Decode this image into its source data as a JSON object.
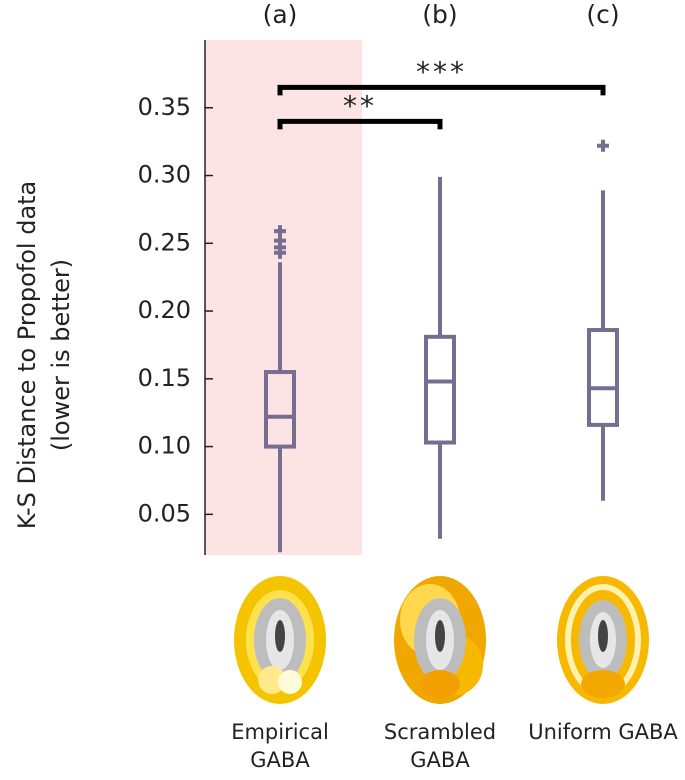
{
  "chart_data": {
    "type": "box",
    "ylabel": "K-S Distance to Propofol data",
    "ylabel_note": "(lower is better)",
    "panel_labels": [
      "(a)",
      "(b)",
      "(c)"
    ],
    "categories": [
      "Empirical GABA",
      "Scrambled GABA",
      "Uniform GABA"
    ],
    "color": "#766d91",
    "highlight_category": 0,
    "highlight_color": "#fde4e4",
    "ylim": [
      0.02,
      0.4
    ],
    "yticks": [
      0.05,
      {
        "value": 0.1,
        "label": "0.10"
      },
      0.15,
      {
        "value": 0.2,
        "label": "0.20"
      },
      0.25,
      {
        "value": 0.3,
        "label": "0.30"
      },
      0.35
    ],
    "boxes": [
      {
        "whislo": 0.022,
        "q1": 0.1,
        "med": 0.122,
        "q3": 0.155,
        "whishi": 0.236,
        "fliers": [
          0.243,
          0.247,
          0.252,
          0.259
        ]
      },
      {
        "whislo": 0.032,
        "q1": 0.103,
        "med": 0.148,
        "q3": 0.181,
        "whishi": 0.299,
        "fliers": []
      },
      {
        "whislo": 0.06,
        "q1": 0.116,
        "med": 0.143,
        "q3": 0.186,
        "whishi": 0.289,
        "fliers": [
          0.322
        ]
      }
    ],
    "significance": [
      {
        "from": 0,
        "to": 2,
        "y": 0.365,
        "label": "***"
      },
      {
        "from": 0,
        "to": 1,
        "y": 0.34,
        "label": "**"
      }
    ]
  }
}
